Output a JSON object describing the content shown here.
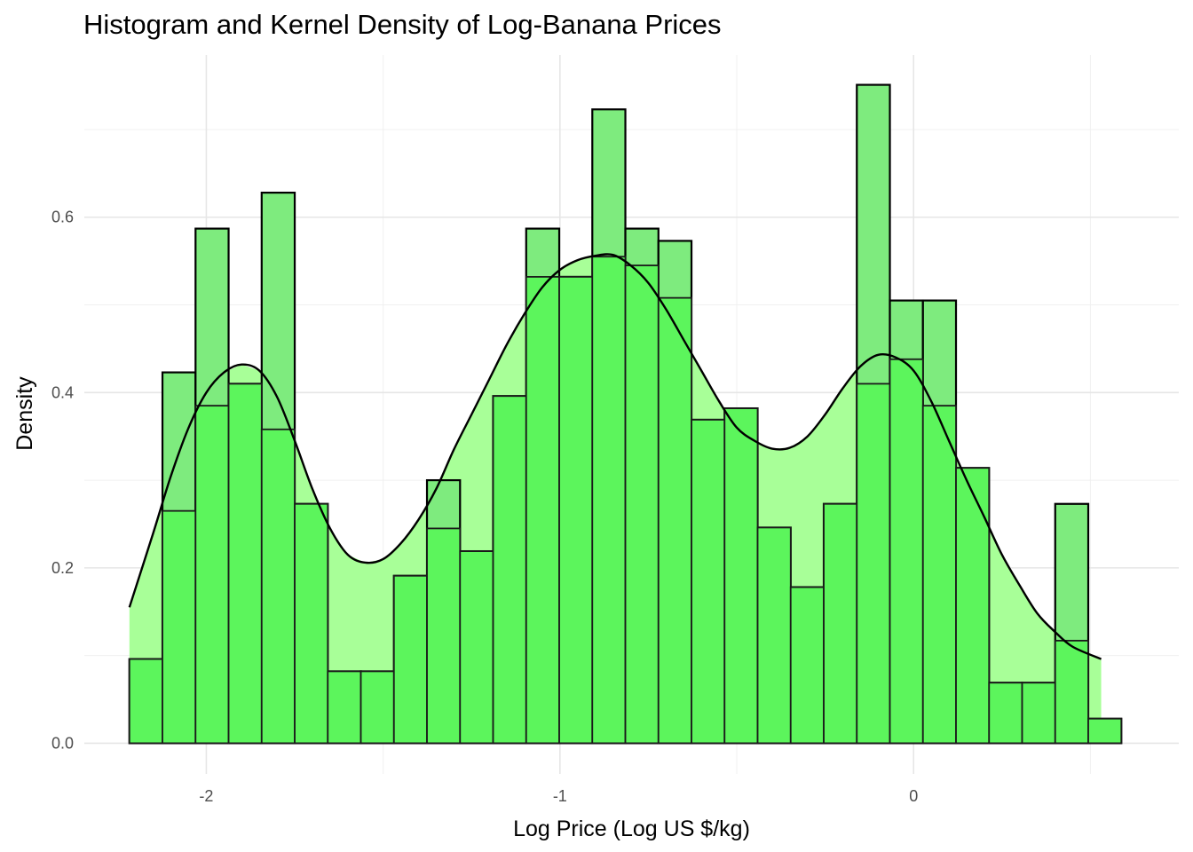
{
  "chart_data": {
    "type": "histogram",
    "title": "Histogram and Kernel Density of Log-Banana Prices",
    "xlabel": "Log Price (Log US $/kg)",
    "ylabel": "Density",
    "xlim": [
      -2.345,
      0.75
    ],
    "ylim": [
      -0.035,
      0.785
    ],
    "x_ticks": [
      {
        "value": -2,
        "label": "-2"
      },
      {
        "value": -1,
        "label": "-1"
      },
      {
        "value": 0,
        "label": "0"
      }
    ],
    "y_ticks": [
      {
        "value": 0.0,
        "label": "0.0"
      },
      {
        "value": 0.2,
        "label": "0.2"
      },
      {
        "value": 0.4,
        "label": "0.4"
      },
      {
        "value": 0.6,
        "label": "0.6"
      }
    ],
    "grid": true,
    "bin_start": -2.2175,
    "bin_width": 0.0935,
    "series": [
      {
        "kind": "histogram",
        "colors": {
          "fill": "#7eeb7e",
          "stroke": "#000000"
        },
        "values": [
          0.096,
          0.423,
          0.587,
          0.41,
          0.628,
          0.273,
          0.082,
          0.082,
          0.191,
          0.3,
          0.219,
          0.396,
          0.587,
          0.532,
          0.723,
          0.587,
          0.573,
          0.369,
          0.382,
          0.246,
          0.178,
          0.273,
          0.751,
          0.505,
          0.505,
          0.314,
          0.069,
          0.069,
          0.273,
          0.028
        ]
      },
      {
        "kind": "histogram",
        "colors": {
          "fill": "#5cf55c",
          "stroke": "#1a1a1a"
        },
        "values": [
          0.096,
          0.265,
          0.385,
          0.41,
          0.358,
          0.273,
          0.082,
          0.082,
          0.191,
          0.245,
          0.219,
          0.396,
          0.532,
          0.532,
          0.555,
          0.545,
          0.508,
          0.369,
          0.382,
          0.246,
          0.178,
          0.273,
          0.41,
          0.438,
          0.385,
          0.314,
          0.069,
          0.069,
          0.117,
          0.028
        ]
      },
      {
        "kind": "density",
        "colors": {
          "fill": "#a8ff98",
          "stroke": "#000000"
        },
        "x": [
          -2.2175,
          -2.15,
          -2.1,
          -2.05,
          -2.0,
          -1.95,
          -1.9,
          -1.85,
          -1.8,
          -1.75,
          -1.7,
          -1.65,
          -1.6,
          -1.55,
          -1.5,
          -1.45,
          -1.4,
          -1.35,
          -1.3,
          -1.25,
          -1.2,
          -1.15,
          -1.1,
          -1.05,
          -1.0,
          -0.95,
          -0.9,
          -0.85,
          -0.8,
          -0.75,
          -0.7,
          -0.65,
          -0.6,
          -0.55,
          -0.5,
          -0.45,
          -0.4,
          -0.35,
          -0.3,
          -0.25,
          -0.2,
          -0.15,
          -0.1,
          -0.05,
          0.0,
          0.05,
          0.1,
          0.15,
          0.2,
          0.25,
          0.3,
          0.35,
          0.4,
          0.45,
          0.5305
        ],
        "y": [
          0.155,
          0.24,
          0.305,
          0.36,
          0.4,
          0.423,
          0.432,
          0.425,
          0.395,
          0.345,
          0.29,
          0.245,
          0.215,
          0.206,
          0.21,
          0.228,
          0.255,
          0.29,
          0.335,
          0.375,
          0.415,
          0.455,
          0.49,
          0.52,
          0.54,
          0.551,
          0.556,
          0.557,
          0.545,
          0.525,
          0.495,
          0.46,
          0.425,
          0.39,
          0.36,
          0.345,
          0.336,
          0.337,
          0.35,
          0.375,
          0.405,
          0.43,
          0.443,
          0.44,
          0.425,
          0.39,
          0.345,
          0.3,
          0.258,
          0.215,
          0.18,
          0.148,
          0.127,
          0.11,
          0.096
        ]
      }
    ]
  }
}
